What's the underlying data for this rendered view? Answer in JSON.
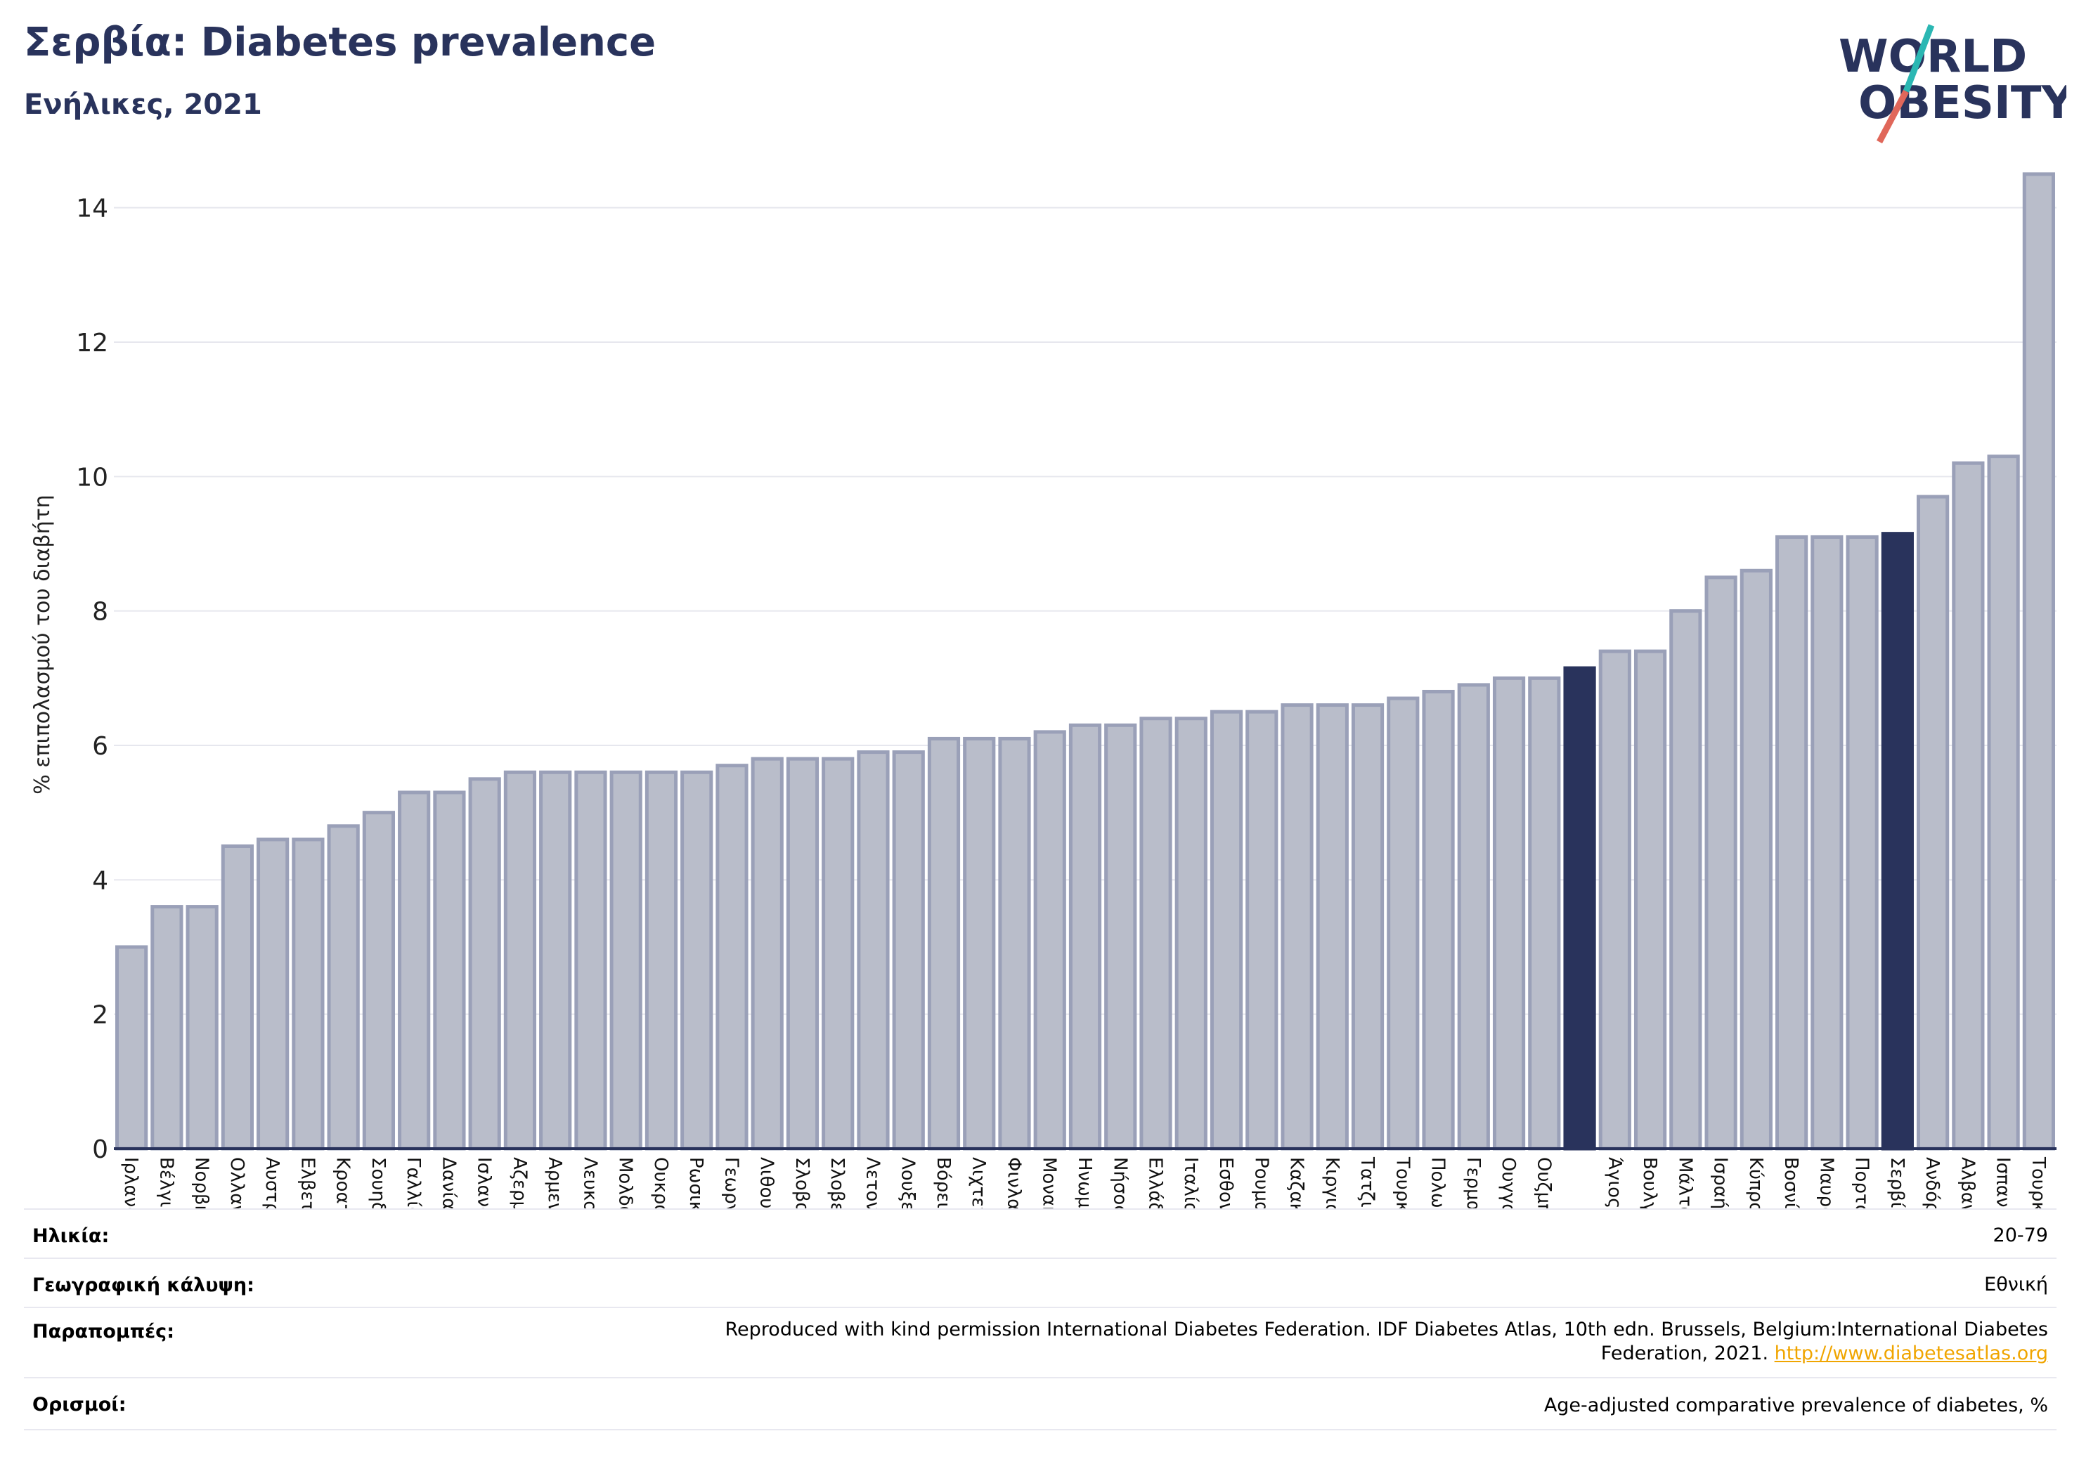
{
  "header": {
    "title": "Σερβία: Diabetes prevalence",
    "subtitle": "Ενήλικες, 2021"
  },
  "logo": {
    "line1": "WORLD",
    "line2": "OBESITY"
  },
  "colors": {
    "bar": "#b9bdca",
    "bar_edge": "#9aa0b8",
    "highlight": "#29335c",
    "title": "#29335c",
    "logo_slash_top": "#2bb7b3",
    "logo_slash_bottom": "#e0675a",
    "link": "#f0a500"
  },
  "chart_data": {
    "type": "bar",
    "ylabel": "% επιπολασμού του διαβήτη",
    "ylim": [
      0,
      15
    ],
    "yticks": [
      0,
      2,
      4,
      6,
      8,
      10,
      12,
      14
    ],
    "grid": true,
    "categories": [
      "Ιρλανδία",
      "Βέλγιο",
      "Νορβηγία",
      "Ολλανδία",
      "Αυστρία",
      "Ελβετία",
      "Κροατία",
      "Σουηδία",
      "Γαλλία",
      "Δανία",
      "Ισλανδία",
      "Αζερμπαϊτζάν",
      "Αρμενία",
      "Λευκορωσία",
      "Μολδαβία",
      "Ουκρανία",
      "Ρωσική Ομοσπονδία",
      "Γεωργία",
      "Λιθουανία",
      "Σλοβακία",
      "Σλοβενία",
      "Λετονία",
      "Λουξεμβούργο",
      "Βόρεια Μακεδονία",
      "Λιχτενστάιν",
      "Φινλανδία",
      "Μονακό",
      "Ηνωμένο Βασίλειο",
      "Νήσος Μαν",
      "Ελλάδα",
      "Ιταλία",
      "Εσθονία",
      "Ρουμανία",
      "Καζακστάν",
      "Κιργιστάν",
      "Τατζικιστάν",
      "Τουρκμενιστάν",
      "Πολωνία",
      "Γερμανία",
      "Ουγγαρία",
      "Ουζμπεκιστάν",
      "",
      "Άγιος Μαρίνος",
      "Βουλγαρία",
      "Μάλτα",
      "Ισραήλ",
      "Κύπρος",
      "Βοσνία και Ερζεγοβίνη",
      "Μαυροβούνιο",
      "Πορτογαλία",
      "Σερβία",
      "Ανδόρα",
      "Αλβανία",
      "Ισπανία",
      "Τουρκία"
    ],
    "values": [
      3.0,
      3.6,
      3.6,
      4.5,
      4.6,
      4.6,
      4.8,
      5.0,
      5.3,
      5.3,
      5.5,
      5.6,
      5.6,
      5.6,
      5.6,
      5.6,
      5.6,
      5.7,
      5.8,
      5.8,
      5.8,
      5.9,
      5.9,
      6.1,
      6.1,
      6.1,
      6.2,
      6.3,
      6.3,
      6.4,
      6.4,
      6.5,
      6.5,
      6.6,
      6.6,
      6.6,
      6.7,
      6.8,
      6.9,
      7.0,
      7.0,
      7.15,
      7.4,
      7.4,
      8.0,
      8.5,
      8.6,
      9.1,
      9.1,
      9.1,
      9.15,
      9.7,
      10.2,
      10.3,
      14.5
    ],
    "highlighted": [
      "",
      "Σερβία"
    ]
  },
  "meta": {
    "age_label": "Ηλικία:",
    "age_value": "20-79",
    "coverage_label": "Γεωγραφική κάλυψη:",
    "coverage_value": "Εθνική",
    "references_label": "Παραπομπές:",
    "references_line1": "Reproduced with kind permission International Diabetes Federation.  IDF Diabetes Atlas, 10th edn. Brussels, Belgium:International Diabetes",
    "references_line2": "Federation, 2021. ",
    "references_link": "http://www.diabetesatlas.org",
    "definitions_label": "Ορισμοί:",
    "definitions_value": "Age-adjusted comparative prevalence of diabetes, %"
  }
}
